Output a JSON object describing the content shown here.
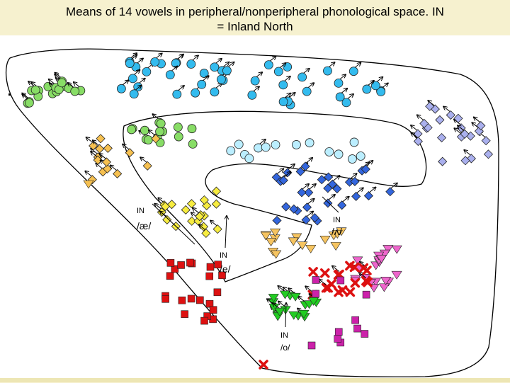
{
  "title": {
    "line1": "Means of 14 vowels in peripheral/nonperipheral phonological space. IN",
    "line2": "= Inland North"
  },
  "labels": {
    "ae": {
      "prefix": "IN",
      "vowel": "/æ/"
    },
    "wedge": {
      "prefix": "IN",
      "vowel": "/ʌ/"
    },
    "e": {
      "prefix": "IN",
      "vowel": "/e/"
    },
    "o": {
      "prefix": "IN",
      "vowel": "/o/"
    }
  },
  "colors": {
    "green_circle": "#88dd66",
    "cyan_circle": "#33bbee",
    "light_cyan_circle": "#bbeeff",
    "lavender_diamond": "#aab0ee",
    "blue_diamond": "#3366dd",
    "orange_diamond": "#f6c050",
    "yellow_diamond": "#f7ec40",
    "red_square": "#dd1111",
    "gold_triangle": "#f6c460",
    "pink_triangle": "#ee66cc",
    "red_x": "#dd1111",
    "green_triangle": "#22cc22",
    "magenta_square": "#cc22aa"
  }
}
